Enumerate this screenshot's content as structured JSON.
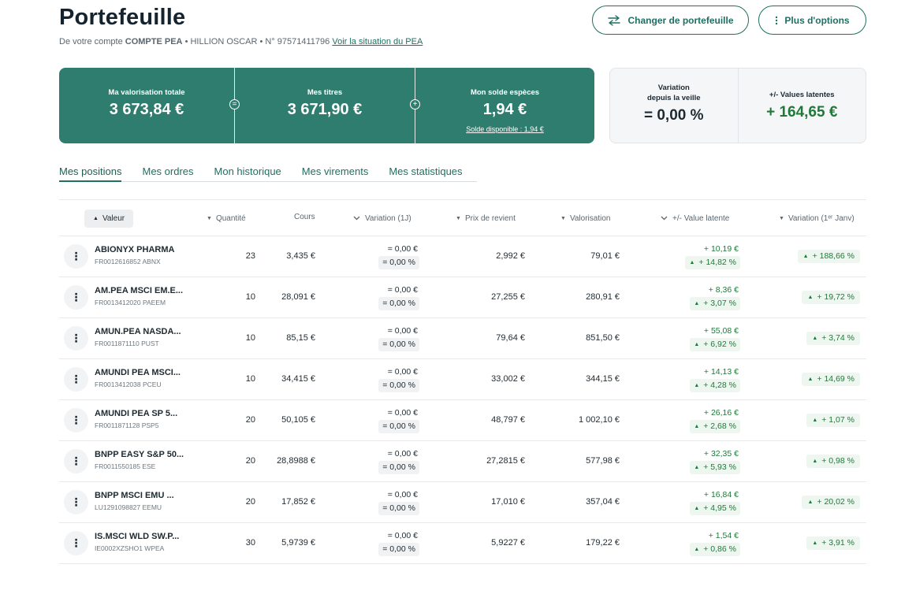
{
  "header": {
    "title": "Portefeuille",
    "subtitle_prefix": "De votre compte",
    "account_type": "COMPTE PEA",
    "holder": "• HILLION OSCAR • N° 97571411796",
    "link": "Voir la situation du PEA",
    "change_button": "Changer de portefeuille",
    "more_button": "Plus d'options"
  },
  "summary": {
    "total_label": "Ma valorisation totale",
    "total_value": "3 673,84 €",
    "eq_symbol": "=",
    "titles_label": "Mes titres",
    "titles_value": "3 671,90 €",
    "plus_symbol": "+",
    "cash_label": "Mon solde espèces",
    "cash_value": "1,94 €",
    "cash_link": "Solde disponible : 1,94 €",
    "variation_label_1": "Variation",
    "variation_label_2": "depuis la veille",
    "variation_value": "= 0,00 %",
    "latent_label": "+/- Values latentes",
    "latent_value": "+ 164,65 €"
  },
  "tabs": [
    "Mes positions",
    "Mes ordres",
    "Mon historique",
    "Mes virements",
    "Mes statistiques"
  ],
  "columns": {
    "valeur": "Valeur",
    "quantite": "Quantité",
    "cours": "Cours",
    "variation_1j": "Variation (1J)",
    "prix": "Prix de revient",
    "valorisation": "Valorisation",
    "latente": "+/- Value latente",
    "variation_jan": "Variation (1ᵉʳ Janv)"
  },
  "rows": [
    {
      "name": "ABIONYX PHARMA",
      "isin": "FR0012616852 ABNX",
      "qty": "23",
      "cours": "3,435 €",
      "var_eur": "= 0,00 €",
      "var_pct": "= 0,00 %",
      "prix": "2,992 €",
      "valo": "79,01 €",
      "lat_eur": "+ 10,19 €",
      "lat_pct": "+ 14,82 %",
      "jan": "+ 188,66 %"
    },
    {
      "name": "AM.PEA MSCI EM.E...",
      "isin": "FR0013412020 PAEEM",
      "qty": "10",
      "cours": "28,091 €",
      "var_eur": "= 0,00 €",
      "var_pct": "= 0,00 %",
      "prix": "27,255 €",
      "valo": "280,91 €",
      "lat_eur": "+ 8,36 €",
      "lat_pct": "+ 3,07 %",
      "jan": "+ 19,72 %"
    },
    {
      "name": "AMUN.PEA NASDA...",
      "isin": "FR0011871110 PUST",
      "qty": "10",
      "cours": "85,15 €",
      "var_eur": "= 0,00 €",
      "var_pct": "= 0,00 %",
      "prix": "79,64 €",
      "valo": "851,50 €",
      "lat_eur": "+ 55,08 €",
      "lat_pct": "+ 6,92 %",
      "jan": "+ 3,74 %"
    },
    {
      "name": "AMUNDI PEA MSCI...",
      "isin": "FR0013412038 PCEU",
      "qty": "10",
      "cours": "34,415 €",
      "var_eur": "= 0,00 €",
      "var_pct": "= 0,00 %",
      "prix": "33,002 €",
      "valo": "344,15 €",
      "lat_eur": "+ 14,13 €",
      "lat_pct": "+ 4,28 %",
      "jan": "+ 14,69 %"
    },
    {
      "name": "AMUNDI PEA SP 5...",
      "isin": "FR0011871128 PSP5",
      "qty": "20",
      "cours": "50,105 €",
      "var_eur": "= 0,00 €",
      "var_pct": "= 0,00 %",
      "prix": "48,797 €",
      "valo": "1 002,10 €",
      "lat_eur": "+ 26,16 €",
      "lat_pct": "+ 2,68 %",
      "jan": "+ 1,07 %"
    },
    {
      "name": "BNPP EASY S&P 50...",
      "isin": "FR0011550185 ESE",
      "qty": "20",
      "cours": "28,8988 €",
      "var_eur": "= 0,00 €",
      "var_pct": "= 0,00 %",
      "prix": "27,2815 €",
      "valo": "577,98 €",
      "lat_eur": "+ 32,35 €",
      "lat_pct": "+ 5,93 %",
      "jan": "+ 0,98 %"
    },
    {
      "name": "BNPP MSCI EMU ...",
      "isin": "LU1291098827 EEMU",
      "qty": "20",
      "cours": "17,852 €",
      "var_eur": "= 0,00 €",
      "var_pct": "= 0,00 %",
      "prix": "17,010 €",
      "valo": "357,04 €",
      "lat_eur": "+ 16,84 €",
      "lat_pct": "+ 4,95 %",
      "jan": "+ 20,02 %"
    },
    {
      "name": "IS.MSCI WLD SW.P...",
      "isin": "IE0002XZSHO1 WPEA",
      "qty": "30",
      "cours": "5,9739 €",
      "var_eur": "= 0,00 €",
      "var_pct": "= 0,00 %",
      "prix": "5,9227 €",
      "valo": "179,22 €",
      "lat_eur": "+ 1,54 €",
      "lat_pct": "+ 0,86 %",
      "jan": "+ 3,91 %"
    }
  ],
  "colors": {
    "brand": "#2f7d6f",
    "positive": "#1f7a3a"
  }
}
